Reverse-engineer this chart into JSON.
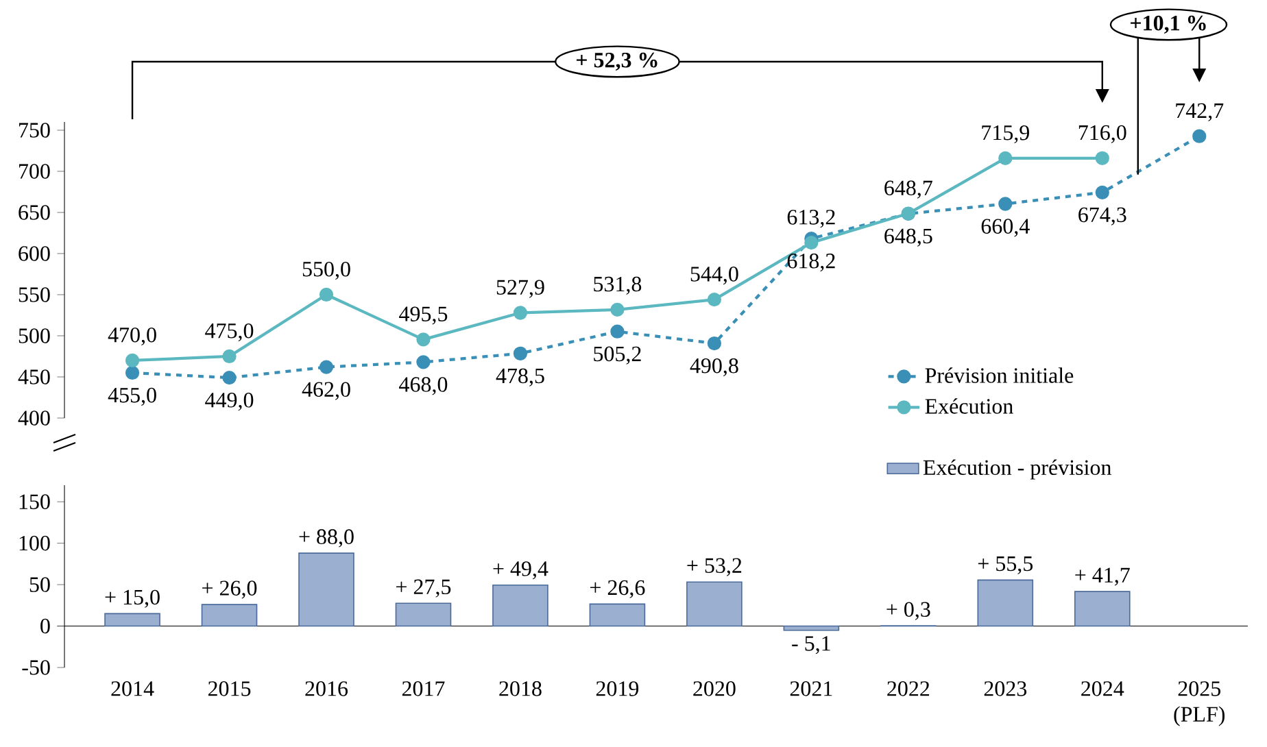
{
  "chart_data": [
    {
      "type": "line",
      "categories": [
        null,
        null,
        null,
        null,
        null,
        null,
        null,
        null,
        null,
        null,
        null,
        null
      ],
      "series": [
        {
          "name": "Prévision initiale",
          "color": "#3a8fb7",
          "line_style": "dashed",
          "values": [
            455.0,
            449.0,
            462.0,
            468.0,
            478.5,
            505.2,
            490.8,
            618.2,
            648.5,
            660.4,
            674.3,
            742.7
          ],
          "value_labels": [
            "455,0",
            "449,0",
            "462,0",
            "468,0",
            "478,5",
            "505,2",
            "490,8",
            "618,2",
            "648,5",
            "660,4",
            "674,3",
            "742,7"
          ]
        },
        {
          "name": "Exécution",
          "color": "#5bb8c0",
          "line_style": "solid",
          "values": [
            470.0,
            475.0,
            550.0,
            495.5,
            527.9,
            531.8,
            544.0,
            613.2,
            648.7,
            715.9,
            716.0,
            null
          ],
          "value_labels": [
            "470,0",
            "475,0",
            "550,0",
            "495,5",
            "527,9",
            "531,8",
            "544,0",
            "613,2",
            "648,7",
            "715,9",
            "716,0",
            null
          ]
        }
      ],
      "ylim": [
        400,
        760
      ],
      "yticks": [
        400,
        450,
        500,
        550,
        600,
        650,
        700,
        750
      ],
      "marker": "circle",
      "legend": "bottom right",
      "tick_labels": "y",
      "annotations": [
        "+ 52,3 %",
        "+10,1 %"
      ]
    },
    {
      "type": "bar",
      "categories": [
        "2014",
        "2015",
        "2016",
        "2017",
        "2018",
        "2019",
        "2020",
        "2021",
        "2022",
        "2023",
        "2024",
        "2025 (PLF)"
      ],
      "series": [
        {
          "name": "Exécution - prévision",
          "color": "#9bafd0",
          "values": [
            15.0,
            26.0,
            88.0,
            27.5,
            49.4,
            26.6,
            53.2,
            -5.1,
            0.3,
            55.5,
            41.7,
            null
          ],
          "value_labels": [
            "+ 15,0",
            "+ 26,0",
            "+ 88,0",
            "+ 27,5",
            "+ 49,4",
            "+ 26,6",
            "+ 53,2",
            "- 5,1",
            "+ 0,3",
            "+ 55,5",
            "+ 41,7",
            null
          ]
        }
      ],
      "ylim": [
        -50,
        170
      ],
      "yticks": [
        -50,
        0,
        50,
        100,
        150
      ],
      "legend": "top right"
    }
  ]
}
